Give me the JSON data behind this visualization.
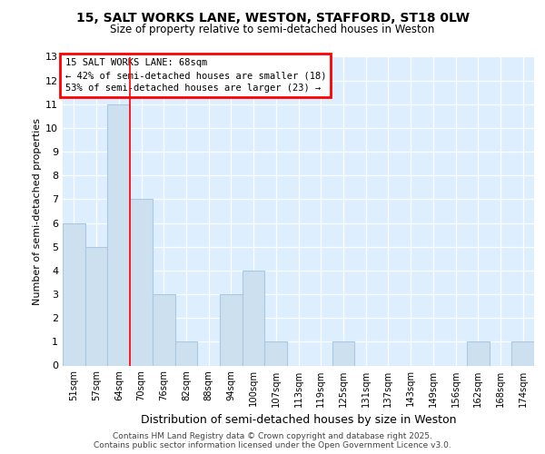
{
  "title1": "15, SALT WORKS LANE, WESTON, STAFFORD, ST18 0LW",
  "title2": "Size of property relative to semi-detached houses in Weston",
  "xlabel": "Distribution of semi-detached houses by size in Weston",
  "ylabel": "Number of semi-detached properties",
  "categories": [
    "51sqm",
    "57sqm",
    "64sqm",
    "70sqm",
    "76sqm",
    "82sqm",
    "88sqm",
    "94sqm",
    "100sqm",
    "107sqm",
    "113sqm",
    "119sqm",
    "125sqm",
    "131sqm",
    "137sqm",
    "143sqm",
    "149sqm",
    "156sqm",
    "162sqm",
    "168sqm",
    "174sqm"
  ],
  "values": [
    6,
    5,
    11,
    7,
    3,
    1,
    0,
    3,
    4,
    1,
    0,
    0,
    1,
    0,
    0,
    0,
    0,
    0,
    1,
    0,
    1
  ],
  "bar_color": "#cce0f0",
  "bar_edge_color": "#aac8e0",
  "red_line_x": 2.5,
  "annotation_title": "15 SALT WORKS LANE: 68sqm",
  "annotation_line1": "← 42% of semi-detached houses are smaller (18)",
  "annotation_line2": "53% of semi-detached houses are larger (23) →",
  "footer1": "Contains HM Land Registry data © Crown copyright and database right 2025.",
  "footer2": "Contains public sector information licensed under the Open Government Licence v3.0.",
  "ylim": [
    0,
    13
  ],
  "yticks": [
    0,
    1,
    2,
    3,
    4,
    5,
    6,
    7,
    8,
    9,
    10,
    11,
    12,
    13
  ],
  "fig_bg_color": "#ffffff",
  "plot_bg_color": "#ddeeff"
}
